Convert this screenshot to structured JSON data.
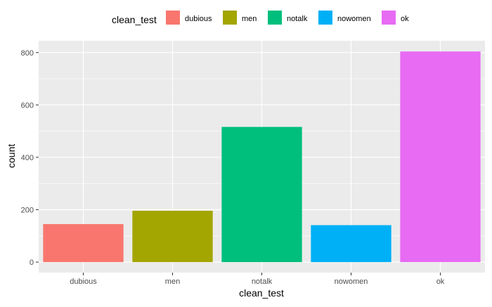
{
  "chart_data": {
    "type": "bar",
    "categories": [
      "dubious",
      "men",
      "notalk",
      "nowomen",
      "ok"
    ],
    "values": [
      145,
      196,
      516,
      141,
      804
    ],
    "colors": [
      "#F8766D",
      "#A3A500",
      "#00BF7D",
      "#00B0F6",
      "#E76BF3"
    ],
    "xlabel": "clean_test",
    "ylabel": "count",
    "ylim": [
      -40,
      845
    ],
    "yticks": [
      0,
      200,
      400,
      600,
      800
    ],
    "yminor": [
      100,
      300,
      500,
      700
    ],
    "legend": {
      "title": "clean_test",
      "position": "top",
      "entries": [
        "dubious",
        "men",
        "notalk",
        "nowomen",
        "ok"
      ]
    },
    "grid": true,
    "panel_background": "#EBEBEB"
  }
}
